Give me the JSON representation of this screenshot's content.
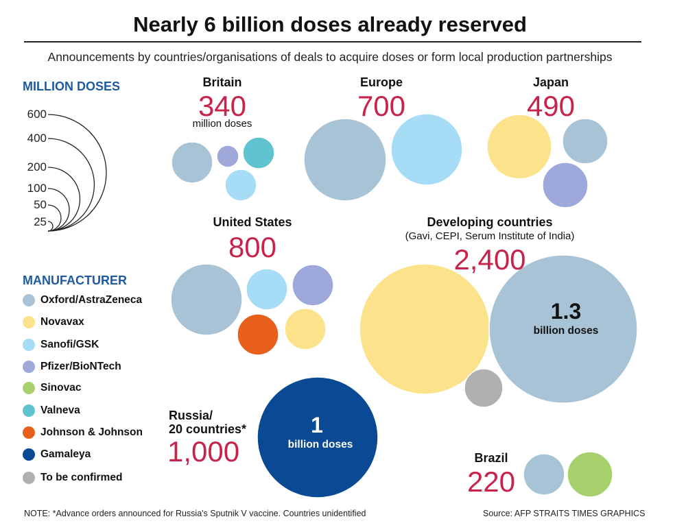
{
  "chart_data": {
    "type": "bubble",
    "title": "Nearly 6 billion doses already reserved",
    "subtitle": "Announcements by countries/organisations of deals to acquire doses or form local production partnerships",
    "size_legend": {
      "heading": "MILLION DOSES",
      "values": [
        "600",
        "400",
        "200",
        "100",
        "50",
        "25"
      ]
    },
    "manufacturer_legend": {
      "heading": "MANUFACTURER",
      "items": [
        {
          "name": "Oxford/AstraZeneca",
          "color": "#a7c3d5"
        },
        {
          "name": "Novavax",
          "color": "#fde28c"
        },
        {
          "name": "Sanofi/GSK",
          "color": "#a6dcf5"
        },
        {
          "name": "Pfizer/BioNTech",
          "color": "#9ea8db"
        },
        {
          "name": "Sinovac",
          "color": "#a8d06c"
        },
        {
          "name": "Valneva",
          "color": "#5fc4cf"
        },
        {
          "name": "Johnson & Johnson",
          "color": "#e8601c"
        },
        {
          "name": "Gamaleya",
          "color": "#0a4a95"
        },
        {
          "name": "To be confirmed",
          "color": "#b0b0b0"
        }
      ]
    },
    "regions": [
      {
        "name": "Britain",
        "total": "340",
        "unit": "million doses"
      },
      {
        "name": "Europe",
        "total": "700"
      },
      {
        "name": "Japan",
        "total": "490"
      },
      {
        "name": "United States",
        "total": "800"
      },
      {
        "name": "Developing countries",
        "note": "(Gavi, CEPI, Serum Institute of India)",
        "total": "2,400",
        "bubble_value": "1.3",
        "bubble_unit": "billion doses"
      },
      {
        "name": "Russia/",
        "name2": "20 countries*",
        "total": "1,000",
        "bubble_value": "1",
        "bubble_unit": "billion doses"
      },
      {
        "name": "Brazil",
        "total": "220"
      }
    ],
    "note": "NOTE: *Advance orders announced for Russia's Sputnik V vaccine. Countries unidentified",
    "source": "Source: AFP   STRAITS TIMES GRAPHICS"
  }
}
